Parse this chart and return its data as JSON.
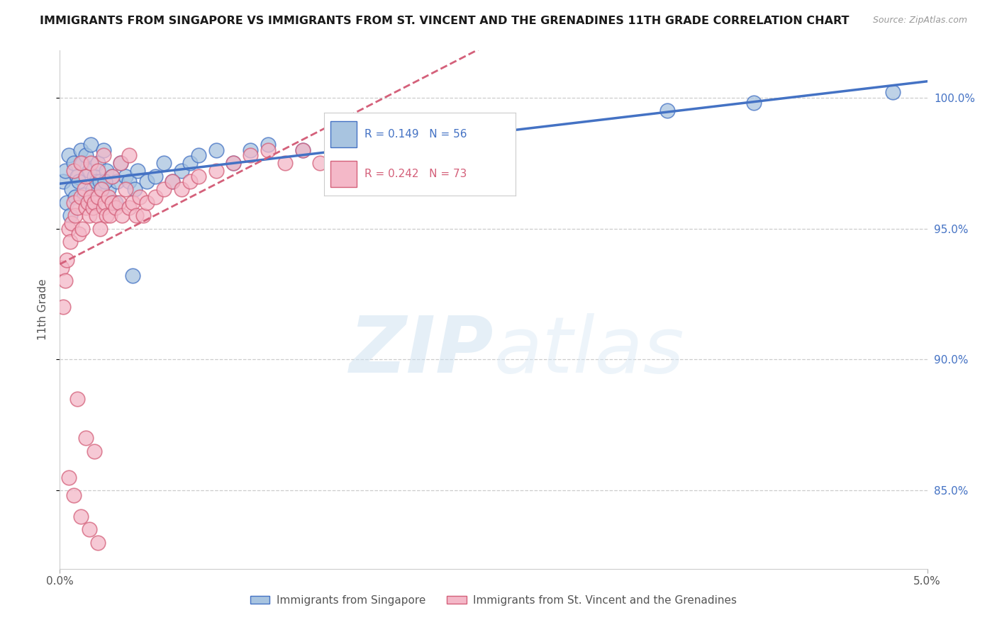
{
  "title": "IMMIGRANTS FROM SINGAPORE VS IMMIGRANTS FROM ST. VINCENT AND THE GRENADINES 11TH GRADE CORRELATION CHART",
  "source": "Source: ZipAtlas.com",
  "ylabel": "11th Grade",
  "x_min": 0.0,
  "x_max": 5.0,
  "y_min": 82.0,
  "y_max": 101.8,
  "singapore_color": "#a8c4e0",
  "singapore_color_line": "#4472c4",
  "stvincent_color": "#f4b8c8",
  "stvincent_color_line": "#d4607a",
  "legend_R_singapore": "0.149",
  "legend_N_singapore": "56",
  "legend_R_stvincent": "0.242",
  "legend_N_stvincent": "73",
  "singapore_x": [
    0.02,
    0.03,
    0.04,
    0.05,
    0.06,
    0.07,
    0.08,
    0.09,
    0.1,
    0.11,
    0.12,
    0.13,
    0.14,
    0.15,
    0.16,
    0.17,
    0.18,
    0.19,
    0.2,
    0.21,
    0.22,
    0.23,
    0.25,
    0.27,
    0.28,
    0.3,
    0.33,
    0.35,
    0.38,
    0.4,
    0.43,
    0.45,
    0.5,
    0.55,
    0.6,
    0.65,
    0.7,
    0.75,
    0.8,
    0.9,
    1.0,
    1.1,
    1.2,
    1.4,
    1.6,
    1.8,
    2.0,
    2.2,
    2.5,
    3.5,
    4.0,
    4.8,
    0.24,
    0.26,
    0.32,
    0.42
  ],
  "singapore_y": [
    96.8,
    97.2,
    96.0,
    97.8,
    95.5,
    96.5,
    97.5,
    96.2,
    97.0,
    96.8,
    98.0,
    97.5,
    96.3,
    97.8,
    96.0,
    97.2,
    98.2,
    96.5,
    97.0,
    96.8,
    97.5,
    96.8,
    98.0,
    97.2,
    96.5,
    97.0,
    96.8,
    97.5,
    97.0,
    96.8,
    96.5,
    97.2,
    96.8,
    97.0,
    97.5,
    96.8,
    97.2,
    97.5,
    97.8,
    98.0,
    97.5,
    98.0,
    98.2,
    98.0,
    97.8,
    97.5,
    98.5,
    98.8,
    99.0,
    99.5,
    99.8,
    100.2,
    96.5,
    96.8,
    96.0,
    93.2
  ],
  "stvincent_x": [
    0.01,
    0.02,
    0.03,
    0.04,
    0.05,
    0.06,
    0.07,
    0.08,
    0.09,
    0.1,
    0.11,
    0.12,
    0.13,
    0.14,
    0.15,
    0.16,
    0.17,
    0.18,
    0.19,
    0.2,
    0.21,
    0.22,
    0.23,
    0.24,
    0.25,
    0.26,
    0.27,
    0.28,
    0.29,
    0.3,
    0.32,
    0.34,
    0.36,
    0.38,
    0.4,
    0.42,
    0.44,
    0.46,
    0.48,
    0.5,
    0.55,
    0.6,
    0.65,
    0.7,
    0.75,
    0.8,
    0.9,
    1.0,
    1.1,
    1.2,
    1.3,
    1.4,
    1.5,
    1.6,
    1.7,
    1.8,
    0.08,
    0.12,
    0.15,
    0.18,
    0.22,
    0.25,
    0.3,
    0.35,
    0.4,
    0.1,
    0.15,
    0.2,
    0.05,
    0.08,
    0.12,
    0.17,
    0.22
  ],
  "stvincent_y": [
    93.5,
    92.0,
    93.0,
    93.8,
    95.0,
    94.5,
    95.2,
    96.0,
    95.5,
    95.8,
    94.8,
    96.2,
    95.0,
    96.5,
    95.8,
    96.0,
    95.5,
    96.2,
    95.8,
    96.0,
    95.5,
    96.2,
    95.0,
    96.5,
    95.8,
    96.0,
    95.5,
    96.2,
    95.5,
    96.0,
    95.8,
    96.0,
    95.5,
    96.5,
    95.8,
    96.0,
    95.5,
    96.2,
    95.5,
    96.0,
    96.2,
    96.5,
    96.8,
    96.5,
    96.8,
    97.0,
    97.2,
    97.5,
    97.8,
    98.0,
    97.5,
    98.0,
    97.5,
    97.8,
    98.0,
    98.2,
    97.2,
    97.5,
    97.0,
    97.5,
    97.2,
    97.8,
    97.0,
    97.5,
    97.8,
    88.5,
    87.0,
    86.5,
    85.5,
    84.8,
    84.0,
    83.5,
    83.0
  ],
  "watermark_zip": "ZIP",
  "watermark_atlas": "atlas",
  "background_color": "#ffffff",
  "grid_color": "#cccccc",
  "right_axis_color": "#4472c4",
  "title_fontsize": 11.5,
  "source_fontsize": 9
}
